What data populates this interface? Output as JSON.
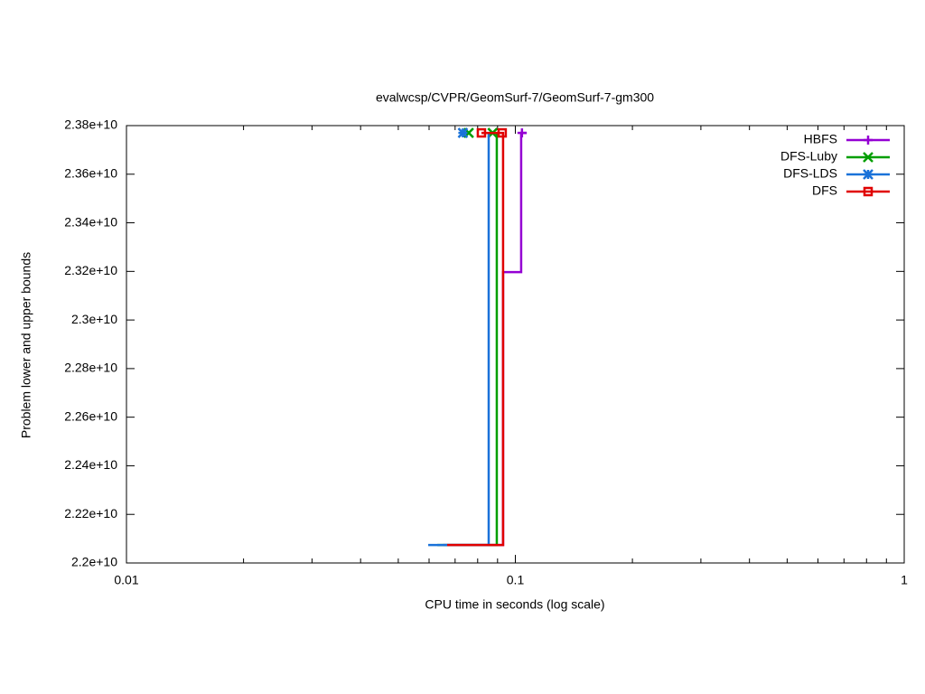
{
  "chart_data": {
    "type": "step",
    "title": "evalwcsp/CVPR/GeomSurf-7/GeomSurf-7-gm300",
    "x_label": "CPU time in seconds (log scale)",
    "y_label": "Problem lower and upper bounds",
    "x_log": true,
    "xlim": [
      0.01,
      1
    ],
    "xticks": [
      0.01,
      0.1,
      1
    ],
    "xminorticks": [
      0.02,
      0.03,
      0.04,
      0.05,
      0.06,
      0.07,
      0.08,
      0.09,
      0.2,
      0.3,
      0.4,
      0.5,
      0.6,
      0.7,
      0.8,
      0.9
    ],
    "ylim": [
      22000000000,
      23800000000
    ],
    "yticks": [
      {
        "value": 22000000000,
        "label": "2.2e+10"
      },
      {
        "value": 22200000000,
        "label": "2.22e+10"
      },
      {
        "value": 22400000000,
        "label": "2.24e+10"
      },
      {
        "value": 22600000000,
        "label": "2.26e+10"
      },
      {
        "value": 22800000000,
        "label": "2.28e+10"
      },
      {
        "value": 23000000000,
        "label": "2.3e+10"
      },
      {
        "value": 23200000000,
        "label": "2.32e+10"
      },
      {
        "value": 23400000000,
        "label": "2.34e+10"
      },
      {
        "value": 23600000000,
        "label": "2.36e+10"
      },
      {
        "value": 23800000000,
        "label": "2.38e+10"
      }
    ],
    "legend": "top-right",
    "series": [
      {
        "name": "HBFS",
        "color": "#9400d3",
        "marker": "plus",
        "x": [
          0.0652,
          0.093,
          0.1035,
          0.107
        ],
        "values": [
          22074000000,
          23197000000,
          23770000000,
          23770000000
        ],
        "points_x": [
          0.104
        ],
        "points_values": [
          23770000000
        ]
      },
      {
        "name": "DFS-Luby",
        "color": "#009e00",
        "marker": "cross",
        "x": [
          0.063,
          0.0896
        ],
        "values": [
          22074000000,
          23770000000
        ],
        "points_x": [
          0.0759,
          0.0874
        ],
        "points_values": [
          23770000000,
          23770000000
        ]
      },
      {
        "name": "DFS-LDS",
        "color": "#1a72d9",
        "marker": "star",
        "x": [
          0.0597,
          0.0854
        ],
        "values": [
          22074000000,
          23770000000
        ],
        "points_x": [
          0.0733
        ],
        "points_values": [
          23770000000
        ]
      },
      {
        "name": "DFS",
        "color": "#e00000",
        "marker": "square",
        "x": [
          0.0668,
          0.093,
          0.0818
        ],
        "values": [
          22074000000,
          23770000000,
          23770000000
        ],
        "points_x": [
          0.0818,
          0.0925
        ],
        "points_values": [
          23770000000,
          23770000000
        ]
      }
    ]
  }
}
